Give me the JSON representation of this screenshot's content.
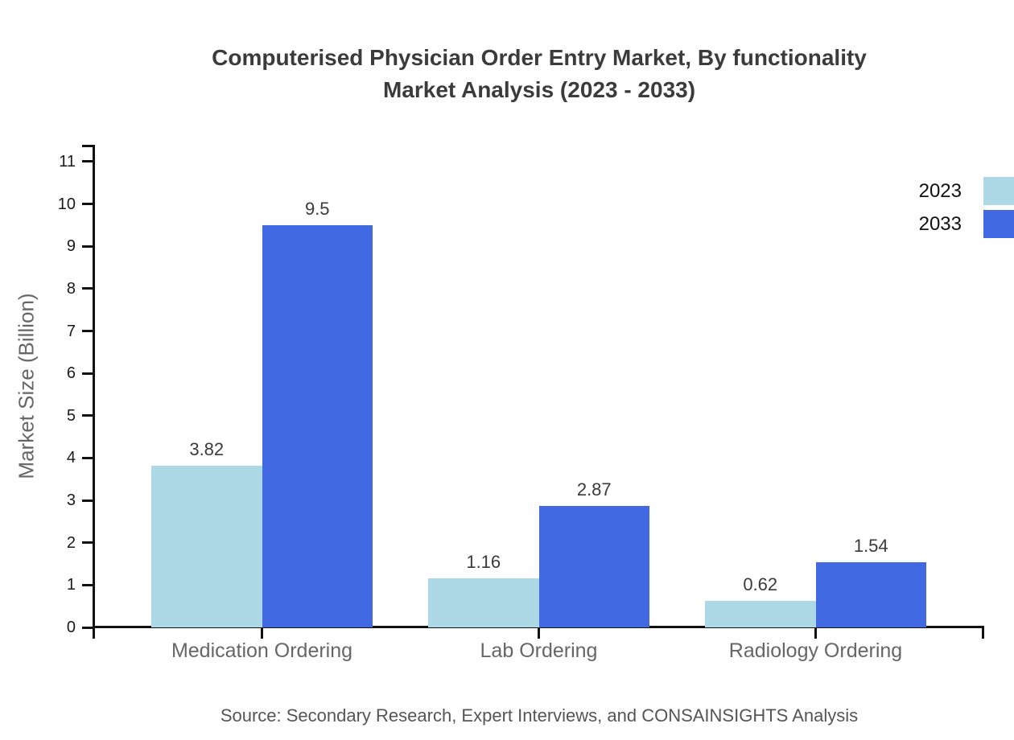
{
  "title": {
    "line1": "Computerised Physician Order Entry Market, By functionality",
    "line2": "Market Analysis (2023 - 2033)"
  },
  "source_text": "Source: Secondary Research, Expert Interviews, and CONSAINSIGHTS Analysis",
  "chart_data": {
    "type": "bar",
    "title": "Computerised Physician Order Entry Market, By functionality Market Analysis (2023 - 2033)",
    "categories": [
      "Medication Ordering",
      "Lab Ordering",
      "Radiology Ordering"
    ],
    "series": [
      {
        "name": "2023",
        "color": "#ADD8E6",
        "values": [
          3.82,
          1.16,
          0.62
        ]
      },
      {
        "name": "2033",
        "color": "#4169E1",
        "values": [
          9.5,
          2.87,
          1.54
        ]
      }
    ],
    "value_labels": [
      [
        "3.82",
        "1.16",
        "0.62"
      ],
      [
        "9.5",
        "2.87",
        "1.54"
      ]
    ],
    "xlabel": "",
    "ylabel": "Market Size (Billion)",
    "ylim": [
      0,
      11
    ],
    "yticks": [
      0,
      1,
      2,
      3,
      4,
      5,
      6,
      7,
      8,
      9,
      10,
      11
    ],
    "grid": false,
    "legend_position": "top-right"
  },
  "colors": {
    "axis": "#111111",
    "title_text": "#3b3b3b",
    "tick_label_text": "#1a1a1a",
    "category_text": "#666666",
    "value_text": "#3a3a3a",
    "source_text": "#555555",
    "background": "#ffffff"
  }
}
